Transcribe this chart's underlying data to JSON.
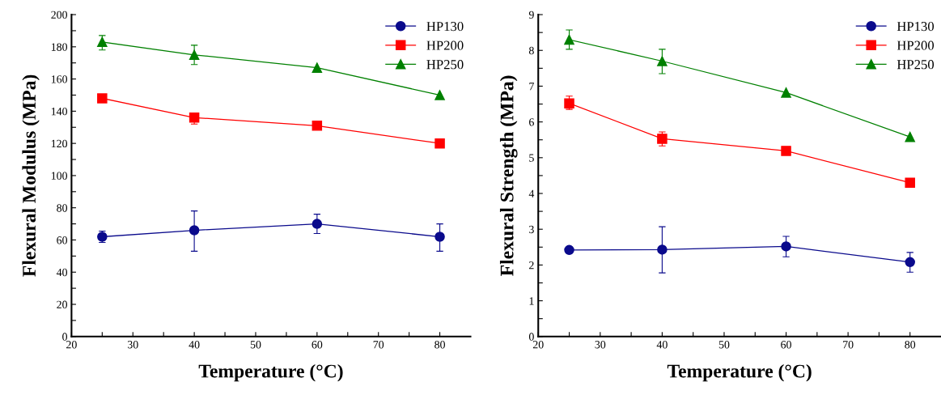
{
  "chart_data": [
    {
      "type": "line",
      "xlabel": "Temperature (°C)",
      "ylabel": "Flexural Modulus (MPa)",
      "xlim": [
        20,
        85
      ],
      "ylim": [
        0,
        200
      ],
      "xticks": [
        20,
        {
          "value": 25,
          "label": null
        },
        30,
        {
          "value": 35,
          "label": null
        },
        40,
        {
          "value": 45,
          "label": null
        },
        50,
        {
          "value": 55,
          "label": null
        },
        60,
        {
          "value": 65,
          "label": null
        },
        70,
        {
          "value": 75,
          "label": null
        },
        80
      ],
      "yticks": [
        0,
        {
          "value": 10,
          "label": null
        },
        20,
        {
          "value": 30,
          "label": null
        },
        40,
        {
          "value": 50,
          "label": null
        },
        60,
        {
          "value": 70,
          "label": null
        },
        80,
        {
          "value": 90,
          "label": null
        },
        100,
        {
          "value": 110,
          "label": null
        },
        120,
        {
          "value": 130,
          "label": null
        },
        140,
        {
          "value": 150,
          "label": null
        },
        160,
        {
          "value": 170,
          "label": null
        },
        180,
        {
          "value": 190,
          "label": null
        },
        200
      ],
      "x": [
        25,
        40,
        60,
        80
      ],
      "legend": "top right",
      "grid": false,
      "series": [
        {
          "name": "HP130",
          "color": "#0a0a8c",
          "marker": "circle",
          "values": [
            62,
            66,
            70,
            62
          ],
          "errors": [
            [
              58.5,
              65.5
            ],
            [
              53,
              78
            ],
            [
              64,
              76
            ],
            [
              53,
              70
            ]
          ]
        },
        {
          "name": "HP200",
          "color": "#ff0000",
          "marker": "square",
          "values": [
            148,
            136,
            131,
            120
          ],
          "errors": [
            [
              146,
              150
            ],
            [
              132,
              138
            ],
            null,
            null
          ]
        },
        {
          "name": "HP250",
          "color": "#008000",
          "marker": "triangle",
          "values": [
            183,
            175,
            167,
            150
          ],
          "errors": [
            [
              178,
              187
            ],
            [
              169,
              181
            ],
            null,
            null
          ]
        }
      ]
    },
    {
      "type": "line",
      "xlabel": "Temperature (°C)",
      "ylabel": "Flexural Strength (MPa)",
      "xlim": [
        20,
        85
      ],
      "ylim": [
        0,
        9
      ],
      "xticks": [
        20,
        {
          "value": 25,
          "label": null
        },
        30,
        {
          "value": 35,
          "label": null
        },
        40,
        {
          "value": 45,
          "label": null
        },
        50,
        {
          "value": 55,
          "label": null
        },
        60,
        {
          "value": 65,
          "label": null
        },
        70,
        {
          "value": 75,
          "label": null
        },
        80
      ],
      "yticks": [
        0,
        {
          "value": 0.5,
          "label": null
        },
        1,
        {
          "value": 1.5,
          "label": null
        },
        2,
        {
          "value": 2.5,
          "label": null
        },
        3,
        {
          "value": 3.5,
          "label": null
        },
        4,
        {
          "value": 4.5,
          "label": null
        },
        5,
        {
          "value": 5.5,
          "label": null
        },
        6,
        {
          "value": 6.5,
          "label": null
        },
        7,
        {
          "value": 7.5,
          "label": null
        },
        8,
        {
          "value": 8.5,
          "label": null
        },
        9
      ],
      "x": [
        25,
        40,
        60,
        80
      ],
      "legend": "top right",
      "grid": false,
      "series": [
        {
          "name": "HP130",
          "color": "#0a0a8c",
          "marker": "circle",
          "values": [
            2.42,
            2.43,
            2.52,
            2.08
          ],
          "errors": [
            [
              2.37,
              2.47
            ],
            [
              1.78,
              3.07
            ],
            [
              2.23,
              2.8
            ],
            [
              1.8,
              2.35
            ]
          ]
        },
        {
          "name": "HP200",
          "color": "#ff0000",
          "marker": "square",
          "values": [
            6.52,
            5.53,
            5.19,
            4.3
          ],
          "errors": [
            [
              6.35,
              6.72
            ],
            [
              5.33,
              5.72
            ],
            null,
            null
          ]
        },
        {
          "name": "HP250",
          "color": "#008000",
          "marker": "triangle",
          "values": [
            8.3,
            7.7,
            6.82,
            5.58
          ],
          "errors": [
            [
              8.03,
              8.57
            ],
            [
              7.35,
              8.03
            ],
            null,
            null
          ]
        }
      ]
    }
  ]
}
